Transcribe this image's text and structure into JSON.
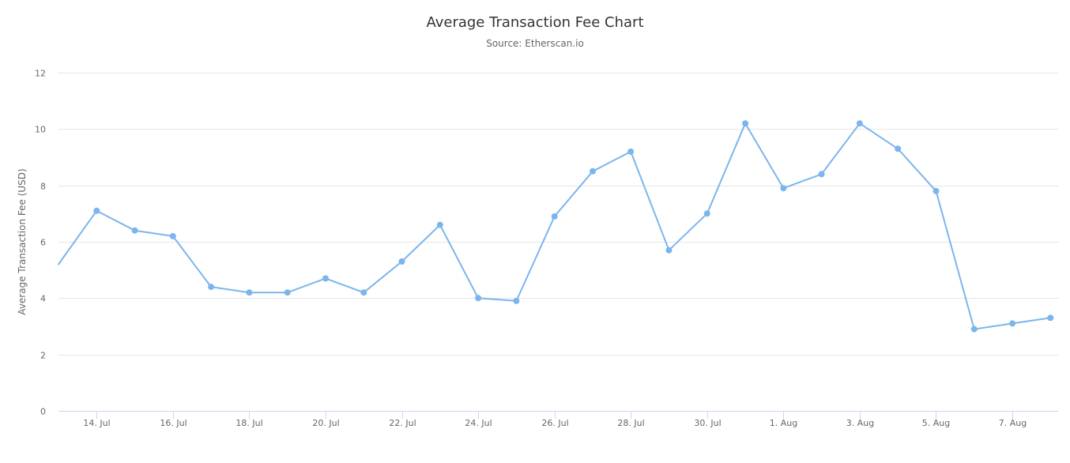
{
  "chart_data": {
    "type": "line",
    "title": "Average Transaction Fee Chart",
    "subtitle": "Source: Etherscan.io",
    "xlabel": "",
    "ylabel": "Average Transaction Fee (USD)",
    "ylim": [
      0,
      12
    ],
    "y_ticks": [
      "0",
      "2",
      "4",
      "6",
      "8",
      "10",
      "12"
    ],
    "x_ticks": [
      "14. Jul",
      "16. Jul",
      "18. Jul",
      "20. Jul",
      "22. Jul",
      "24. Jul",
      "26. Jul",
      "28. Jul",
      "30. Jul",
      "1. Aug",
      "3. Aug",
      "5. Aug",
      "7. Aug"
    ],
    "grid": true,
    "legend": "none",
    "color": "#7cb5ec",
    "x": [
      "2020-07-13",
      "2020-07-14",
      "2020-07-15",
      "2020-07-16",
      "2020-07-17",
      "2020-07-18",
      "2020-07-19",
      "2020-07-20",
      "2020-07-21",
      "2020-07-22",
      "2020-07-23",
      "2020-07-24",
      "2020-07-25",
      "2020-07-26",
      "2020-07-27",
      "2020-07-28",
      "2020-07-29",
      "2020-07-30",
      "2020-07-31",
      "2020-08-01",
      "2020-08-02",
      "2020-08-03",
      "2020-08-04",
      "2020-08-05",
      "2020-08-06",
      "2020-08-07",
      "2020-08-08"
    ],
    "values": [
      5.2,
      7.1,
      6.4,
      6.2,
      4.4,
      4.2,
      4.2,
      4.7,
      4.2,
      5.3,
      6.6,
      4.0,
      3.9,
      6.9,
      8.5,
      9.2,
      5.7,
      7.0,
      10.2,
      7.9,
      8.4,
      10.2,
      9.3,
      7.8,
      2.9,
      3.1,
      3.3
    ]
  }
}
